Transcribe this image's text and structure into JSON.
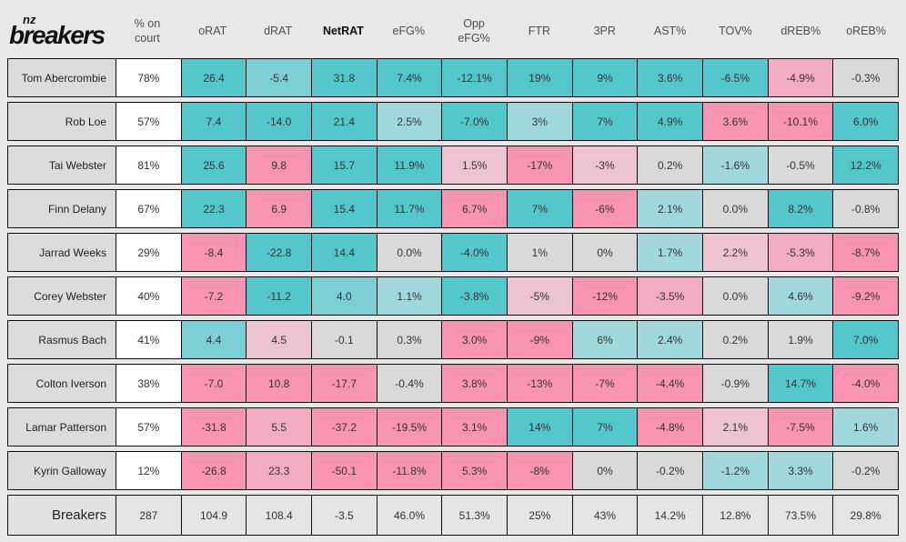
{
  "logo": {
    "top": "nz",
    "main": "breakers"
  },
  "columns": [
    {
      "key": "pct-on-court",
      "label": "% on\ncourt",
      "bold": false
    },
    {
      "key": "oRAT",
      "label": "oRAT",
      "bold": false
    },
    {
      "key": "dRAT",
      "label": "dRAT",
      "bold": false
    },
    {
      "key": "NetRAT",
      "label": "NetRAT",
      "bold": true
    },
    {
      "key": "eFG",
      "label": "eFG%",
      "bold": false
    },
    {
      "key": "Opp-eFG",
      "label": "Opp\neFG%",
      "bold": false
    },
    {
      "key": "FTR",
      "label": "FTR",
      "bold": false
    },
    {
      "key": "3PR",
      "label": "3PR",
      "bold": false
    },
    {
      "key": "AST",
      "label": "AST%",
      "bold": false
    },
    {
      "key": "TOV",
      "label": "TOV%",
      "bold": false
    },
    {
      "key": "dREB",
      "label": "dREB%",
      "bold": false
    },
    {
      "key": "oREB",
      "label": "oREB%",
      "bold": false
    }
  ],
  "colors": {
    "t3": "#54c7cd",
    "t2": "#7ccfd4",
    "t1": "#a0d8db",
    "g": "#d9d9d9",
    "p1": "#eec3d1",
    "p2": "#f3abc3",
    "p3": "#f994b3",
    "w": "#ffffff",
    "tot": "#e5e5e5",
    "name_bg": "#dcdcdc",
    "page_bg": "#e8e8e8",
    "border": "#0c0c0c"
  },
  "rows": [
    {
      "name": "Tom Abercrombie",
      "cells": [
        {
          "v": "78%",
          "c": "w"
        },
        {
          "v": "26.4",
          "c": "t3"
        },
        {
          "v": "-5.4",
          "c": "t2"
        },
        {
          "v": "31.8",
          "c": "t3"
        },
        {
          "v": "7.4%",
          "c": "t3"
        },
        {
          "v": "-12.1%",
          "c": "t3"
        },
        {
          "v": "19%",
          "c": "t3"
        },
        {
          "v": "9%",
          "c": "t3"
        },
        {
          "v": "3.6%",
          "c": "t3"
        },
        {
          "v": "-6.5%",
          "c": "t3"
        },
        {
          "v": "-4.9%",
          "c": "p2"
        },
        {
          "v": "-0.3%",
          "c": "g"
        }
      ]
    },
    {
      "name": "Rob Loe",
      "cells": [
        {
          "v": "57%",
          "c": "w"
        },
        {
          "v": "7.4",
          "c": "t3"
        },
        {
          "v": "-14.0",
          "c": "t3"
        },
        {
          "v": "21.4",
          "c": "t3"
        },
        {
          "v": "2.5%",
          "c": "t1"
        },
        {
          "v": "-7.0%",
          "c": "t3"
        },
        {
          "v": "3%",
          "c": "t1"
        },
        {
          "v": "7%",
          "c": "t3"
        },
        {
          "v": "4.9%",
          "c": "t3"
        },
        {
          "v": "3.6%",
          "c": "p3"
        },
        {
          "v": "-10.1%",
          "c": "p3"
        },
        {
          "v": "6.0%",
          "c": "t3"
        }
      ]
    },
    {
      "name": "Tai Webster",
      "cells": [
        {
          "v": "81%",
          "c": "w"
        },
        {
          "v": "25.6",
          "c": "t3"
        },
        {
          "v": "9.8",
          "c": "p3"
        },
        {
          "v": "15.7",
          "c": "t3"
        },
        {
          "v": "11.9%",
          "c": "t3"
        },
        {
          "v": "1.5%",
          "c": "p1"
        },
        {
          "v": "-17%",
          "c": "p3"
        },
        {
          "v": "-3%",
          "c": "p1"
        },
        {
          "v": "0.2%",
          "c": "g"
        },
        {
          "v": "-1.6%",
          "c": "t1"
        },
        {
          "v": "-0.5%",
          "c": "g"
        },
        {
          "v": "12.2%",
          "c": "t3"
        }
      ]
    },
    {
      "name": "Finn Delany",
      "cells": [
        {
          "v": "67%",
          "c": "w"
        },
        {
          "v": "22.3",
          "c": "t3"
        },
        {
          "v": "6.9",
          "c": "p3"
        },
        {
          "v": "15.4",
          "c": "t3"
        },
        {
          "v": "11.7%",
          "c": "t3"
        },
        {
          "v": "6.7%",
          "c": "p3"
        },
        {
          "v": "7%",
          "c": "t3"
        },
        {
          "v": "-6%",
          "c": "p3"
        },
        {
          "v": "2.1%",
          "c": "t1"
        },
        {
          "v": "0.0%",
          "c": "g"
        },
        {
          "v": "8.2%",
          "c": "t3"
        },
        {
          "v": "-0.8%",
          "c": "g"
        }
      ]
    },
    {
      "name": "Jarrad Weeks",
      "cells": [
        {
          "v": "29%",
          "c": "w"
        },
        {
          "v": "-8.4",
          "c": "p3"
        },
        {
          "v": "-22.8",
          "c": "t3"
        },
        {
          "v": "14.4",
          "c": "t3"
        },
        {
          "v": "0.0%",
          "c": "g"
        },
        {
          "v": "-4.0%",
          "c": "t3"
        },
        {
          "v": "1%",
          "c": "g"
        },
        {
          "v": "0%",
          "c": "g"
        },
        {
          "v": "1.7%",
          "c": "t1"
        },
        {
          "v": "2.2%",
          "c": "p1"
        },
        {
          "v": "-5.3%",
          "c": "p2"
        },
        {
          "v": "-8.7%",
          "c": "p3"
        }
      ]
    },
    {
      "name": "Corey Webster",
      "cells": [
        {
          "v": "40%",
          "c": "w"
        },
        {
          "v": "-7.2",
          "c": "p3"
        },
        {
          "v": "-11.2",
          "c": "t3"
        },
        {
          "v": "4.0",
          "c": "t2"
        },
        {
          "v": "1.1%",
          "c": "t1"
        },
        {
          "v": "-3.8%",
          "c": "t3"
        },
        {
          "v": "-5%",
          "c": "p1"
        },
        {
          "v": "-12%",
          "c": "p3"
        },
        {
          "v": "-3.5%",
          "c": "p2"
        },
        {
          "v": "0.0%",
          "c": "g"
        },
        {
          "v": "4.6%",
          "c": "t1"
        },
        {
          "v": "-9.2%",
          "c": "p3"
        }
      ]
    },
    {
      "name": "Rasmus Bach",
      "cells": [
        {
          "v": "41%",
          "c": "w"
        },
        {
          "v": "4.4",
          "c": "t2"
        },
        {
          "v": "4.5",
          "c": "p1"
        },
        {
          "v": "-0.1",
          "c": "g"
        },
        {
          "v": "0.3%",
          "c": "g"
        },
        {
          "v": "3.0%",
          "c": "p3"
        },
        {
          "v": "-9%",
          "c": "p3"
        },
        {
          "v": "6%",
          "c": "t1"
        },
        {
          "v": "2.4%",
          "c": "t1"
        },
        {
          "v": "0.2%",
          "c": "g"
        },
        {
          "v": "1.9%",
          "c": "g"
        },
        {
          "v": "7.0%",
          "c": "t3"
        }
      ]
    },
    {
      "name": "Colton Iverson",
      "cells": [
        {
          "v": "38%",
          "c": "w"
        },
        {
          "v": "-7.0",
          "c": "p3"
        },
        {
          "v": "10.8",
          "c": "p3"
        },
        {
          "v": "-17.7",
          "c": "p3"
        },
        {
          "v": "-0.4%",
          "c": "g"
        },
        {
          "v": "3.8%",
          "c": "p3"
        },
        {
          "v": "-13%",
          "c": "p3"
        },
        {
          "v": "-7%",
          "c": "p3"
        },
        {
          "v": "-4.4%",
          "c": "p3"
        },
        {
          "v": "-0.9%",
          "c": "g"
        },
        {
          "v": "14.7%",
          "c": "t3"
        },
        {
          "v": "-4.0%",
          "c": "p3"
        }
      ]
    },
    {
      "name": "Lamar Patterson",
      "cells": [
        {
          "v": "57%",
          "c": "w"
        },
        {
          "v": "-31.8",
          "c": "p3"
        },
        {
          "v": "5.5",
          "c": "p2"
        },
        {
          "v": "-37.2",
          "c": "p3"
        },
        {
          "v": "-19.5%",
          "c": "p3"
        },
        {
          "v": "3.1%",
          "c": "p3"
        },
        {
          "v": "14%",
          "c": "t3"
        },
        {
          "v": "7%",
          "c": "t3"
        },
        {
          "v": "-4.8%",
          "c": "p3"
        },
        {
          "v": "2.1%",
          "c": "p1"
        },
        {
          "v": "-7.5%",
          "c": "p3"
        },
        {
          "v": "1.6%",
          "c": "t1"
        }
      ]
    },
    {
      "name": "Kyrin Galloway",
      "cells": [
        {
          "v": "12%",
          "c": "w"
        },
        {
          "v": "-26.8",
          "c": "p3"
        },
        {
          "v": "23.3",
          "c": "p2"
        },
        {
          "v": "-50.1",
          "c": "p3"
        },
        {
          "v": "-11.8%",
          "c": "p3"
        },
        {
          "v": "5.3%",
          "c": "p3"
        },
        {
          "v": "-8%",
          "c": "p3"
        },
        {
          "v": "0%",
          "c": "g"
        },
        {
          "v": "-0.2%",
          "c": "g"
        },
        {
          "v": "-1.2%",
          "c": "t1"
        },
        {
          "v": "3.3%",
          "c": "t1"
        },
        {
          "v": "-0.2%",
          "c": "g"
        }
      ]
    }
  ],
  "total_row": {
    "name": "Breakers",
    "cells": [
      {
        "v": "287",
        "c": "tot"
      },
      {
        "v": "104.9",
        "c": "tot"
      },
      {
        "v": "108.4",
        "c": "tot"
      },
      {
        "v": "-3.5",
        "c": "tot"
      },
      {
        "v": "46.0%",
        "c": "tot"
      },
      {
        "v": "51.3%",
        "c": "tot"
      },
      {
        "v": "25%",
        "c": "tot"
      },
      {
        "v": "43%",
        "c": "tot"
      },
      {
        "v": "14.2%",
        "c": "tot"
      },
      {
        "v": "12.8%",
        "c": "tot"
      },
      {
        "v": "73.5%",
        "c": "tot"
      },
      {
        "v": "29.8%",
        "c": "tot"
      }
    ]
  }
}
